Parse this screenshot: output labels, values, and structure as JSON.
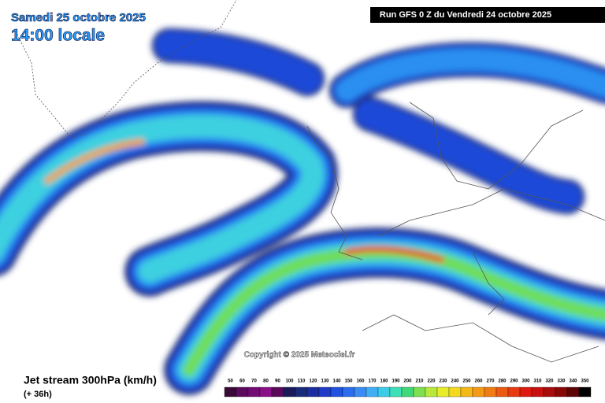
{
  "header": {
    "date": "Samedi 25 octobre 2025",
    "time": "14:00 locale",
    "run": "Run GFS 0 Z du Vendredi 24 octobre 2025"
  },
  "copyright": "Copyright © 2025 Meteociel.fr",
  "legend": {
    "title": "Jet stream 300hPa (km/h)",
    "lead": "(+ 36h)",
    "levels": [
      50,
      60,
      70,
      80,
      90,
      100,
      110,
      120,
      130,
      140,
      150,
      160,
      170,
      180,
      190,
      200,
      210,
      220,
      230,
      240,
      250,
      260,
      270,
      280,
      290,
      300,
      310,
      320,
      330,
      340,
      350
    ],
    "colors": [
      "#3a0a36",
      "#5c0a5c",
      "#740a74",
      "#8a108a",
      "#5a0a5a",
      "#1a1a5a",
      "#1a2a7a",
      "#1a2ea0",
      "#1e3cc8",
      "#1f52e0",
      "#2a6ef0",
      "#3a8cf4",
      "#40aef4",
      "#3ccce8",
      "#3ee0b8",
      "#40d878",
      "#7ee050",
      "#bae83a",
      "#e8ec2a",
      "#f4d820",
      "#f4b818",
      "#f49a18",
      "#f07c14",
      "#ec5a10",
      "#e63a10",
      "#dc1a10",
      "#c81010",
      "#a80c0c",
      "#880808",
      "#5a0404",
      "#000000"
    ]
  }
}
